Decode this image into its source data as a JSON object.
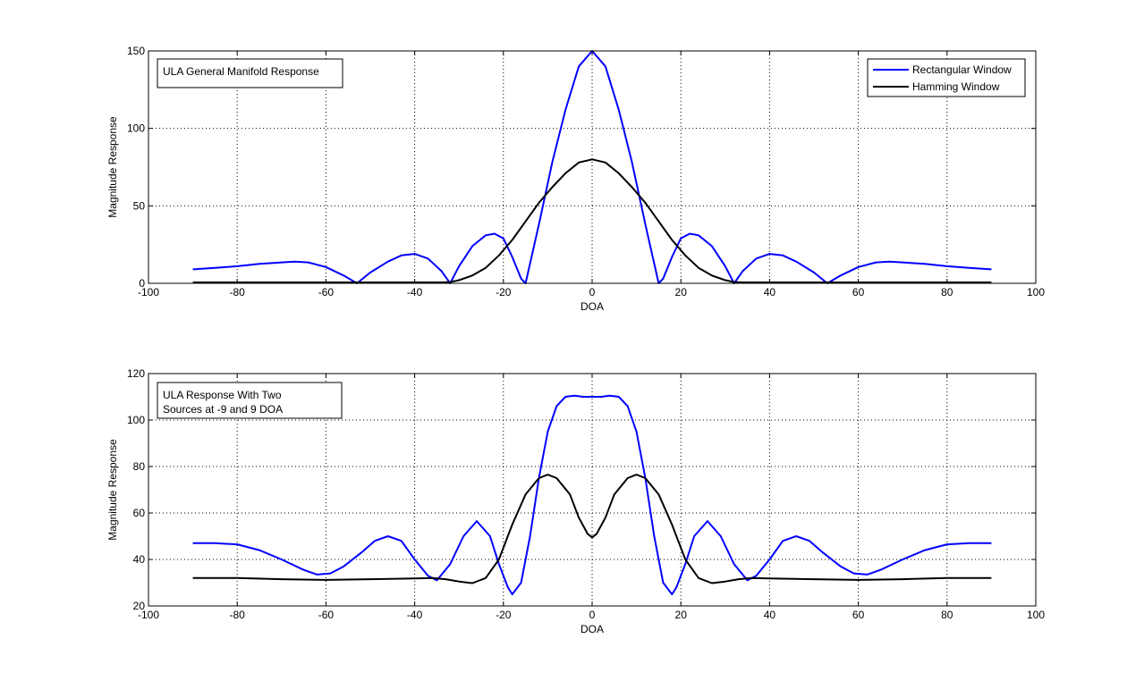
{
  "colors": {
    "rectangular": "#0000ff",
    "hamming": "#000000",
    "axes": "#000000",
    "grid": "#000000",
    "background": "#ffffff"
  },
  "chart_data": [
    {
      "type": "line",
      "annotation": [
        "ULA General Manifold Response"
      ],
      "xlabel": "DOA",
      "ylabel": "Magnitude Response",
      "xlim": [
        -100,
        100
      ],
      "ylim": [
        0,
        150
      ],
      "xticks": [
        -100,
        -80,
        -60,
        -40,
        -20,
        0,
        20,
        40,
        60,
        80,
        100
      ],
      "yticks": [
        0,
        50,
        100,
        150
      ],
      "grid": true,
      "legend_position": "top-right",
      "legend": [
        "Rectangular Window",
        "Hamming Window"
      ],
      "series": [
        {
          "name": "Rectangular Window",
          "color": "#0000ff",
          "x": [
            -90,
            -85,
            -80,
            -75,
            -70,
            -67,
            -64,
            -60,
            -56,
            -53,
            -50,
            -46,
            -43,
            -40,
            -37,
            -34,
            -32,
            -30,
            -27,
            -24,
            -22,
            -20,
            -18,
            -16,
            -15,
            -12,
            -9,
            -6,
            -3,
            0,
            3,
            6,
            9,
            12,
            15,
            16,
            18,
            20,
            22,
            24,
            27,
            30,
            32,
            34,
            37,
            40,
            43,
            46,
            50,
            53,
            56,
            60,
            64,
            67,
            70,
            75,
            80,
            85,
            90
          ],
          "y": [
            9,
            10,
            11,
            12.5,
            13.5,
            14,
            13.5,
            10.5,
            5,
            0,
            7,
            14,
            18,
            19,
            16,
            8,
            0,
            11,
            24,
            31,
            32,
            29,
            17,
            3,
            0,
            38,
            78,
            112,
            140,
            150,
            140,
            112,
            78,
            38,
            0,
            3,
            17,
            29,
            32,
            31,
            24,
            11,
            0,
            8,
            16,
            19,
            18,
            14,
            7,
            0,
            5,
            10.5,
            13.5,
            14,
            13.5,
            12.5,
            11,
            10,
            9
          ]
        },
        {
          "name": "Hamming Window",
          "color": "#000000",
          "x": [
            -90,
            -80,
            -70,
            -60,
            -50,
            -40,
            -34,
            -32,
            -30,
            -27,
            -24,
            -21,
            -18,
            -15,
            -12,
            -9,
            -6,
            -3,
            0,
            3,
            6,
            9,
            12,
            15,
            18,
            21,
            24,
            27,
            30,
            32,
            34,
            40,
            50,
            60,
            70,
            80,
            90
          ],
          "y": [
            0.6,
            0.6,
            0.6,
            0.6,
            0.6,
            0.6,
            0.6,
            0.8,
            2,
            5,
            10,
            18,
            28,
            40,
            52,
            62,
            71,
            78,
            80,
            78,
            71,
            62,
            52,
            40,
            28,
            18,
            10,
            5,
            2,
            0.8,
            0.6,
            0.6,
            0.6,
            0.6,
            0.6,
            0.6,
            0.6
          ]
        }
      ]
    },
    {
      "type": "line",
      "annotation": [
        "ULA Response With Two",
        "Sources at -9 and 9 DOA"
      ],
      "xlabel": "DOA",
      "ylabel": "Magnitude Response",
      "xlim": [
        -100,
        100
      ],
      "ylim": [
        20,
        120
      ],
      "xticks": [
        -100,
        -80,
        -60,
        -40,
        -20,
        0,
        20,
        40,
        60,
        80,
        100
      ],
      "yticks": [
        20,
        40,
        60,
        80,
        100,
        120
      ],
      "grid": true,
      "series": [
        {
          "name": "Rectangular Window",
          "color": "#0000ff",
          "x": [
            -90,
            -85,
            -80,
            -75,
            -70,
            -65,
            -62,
            -59,
            -56,
            -52,
            -49,
            -46,
            -43,
            -40,
            -37,
            -35,
            -32,
            -29,
            -26,
            -23,
            -21,
            -19,
            -18,
            -16,
            -14,
            -12,
            -10,
            -8,
            -6,
            -4,
            -2,
            0,
            2,
            4,
            6,
            8,
            10,
            12,
            14,
            16,
            18,
            19,
            21,
            23,
            26,
            29,
            32,
            35,
            37,
            40,
            43,
            46,
            49,
            52,
            56,
            59,
            62,
            65,
            70,
            75,
            80,
            85,
            90
          ],
          "y": [
            47,
            47,
            46.5,
            44,
            40,
            35.5,
            33.5,
            34,
            37,
            43,
            48,
            50,
            48,
            40,
            33,
            31,
            38,
            50,
            56.5,
            50,
            38,
            28,
            25,
            30,
            50,
            75,
            95,
            106,
            110,
            110.5,
            110,
            110,
            110,
            110.5,
            110,
            106,
            95,
            75,
            50,
            30,
            25,
            28,
            38,
            50,
            56.5,
            50,
            38,
            31,
            33,
            40,
            48,
            50,
            48,
            43,
            37,
            34,
            33.5,
            35.5,
            40,
            44,
            46.5,
            47,
            47
          ]
        },
        {
          "name": "Hamming Window",
          "color": "#000000",
          "x": [
            -90,
            -80,
            -70,
            -60,
            -50,
            -40,
            -36,
            -33,
            -30,
            -27,
            -24,
            -21,
            -18,
            -15,
            -12,
            -10,
            -8,
            -5,
            -3,
            -1,
            0,
            1,
            3,
            5,
            8,
            10,
            12,
            15,
            18,
            21,
            24,
            27,
            30,
            33,
            36,
            40,
            50,
            60,
            70,
            80,
            90
          ],
          "y": [
            32,
            32,
            31.5,
            31.2,
            31.5,
            31.8,
            32,
            31.5,
            30.5,
            29.8,
            32,
            40,
            55,
            68,
            75,
            76.5,
            75,
            68,
            58,
            51,
            49.5,
            51,
            58,
            68,
            75,
            76.5,
            75,
            68,
            55,
            40,
            32,
            29.8,
            30.5,
            31.5,
            32,
            31.8,
            31.5,
            31.2,
            31.5,
            32,
            32
          ]
        }
      ]
    }
  ]
}
